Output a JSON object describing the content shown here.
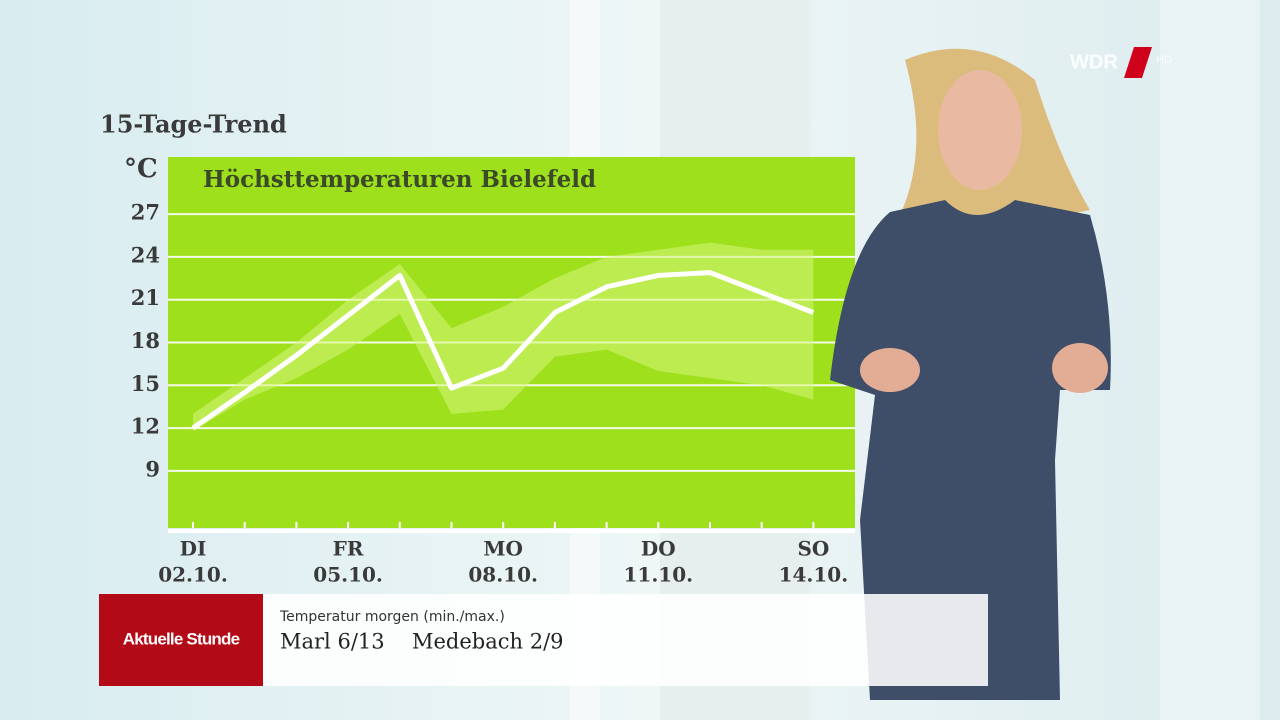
{
  "header": {
    "title": "15-Tage-Trend"
  },
  "logo": {
    "text": "WDR",
    "suffix": "HD"
  },
  "chart_data": {
    "type": "line",
    "title": "Höchsttemperaturen Bielefeld",
    "y_label": "°C",
    "weekdays": [
      "DI",
      null,
      null,
      "FR",
      null,
      null,
      "MO",
      null,
      null,
      "DO",
      null,
      null,
      "SO"
    ],
    "categories": [
      "02.10.",
      null,
      null,
      "05.10.",
      null,
      null,
      "08.10.",
      null,
      null,
      "11.10.",
      null,
      null,
      "14.10."
    ],
    "series": [
      {
        "color": "#ffffff",
        "values": [
          12.0,
          14.5,
          17.1,
          19.9,
          22.7,
          14.8,
          16.2,
          20.1,
          21.9,
          22.7,
          22.9,
          21.5,
          20.1
        ]
      }
    ],
    "band": {
      "color": "#d4f57a",
      "upper": [
        13.0,
        15.5,
        18.0,
        21.0,
        23.5,
        19.0,
        20.5,
        22.5,
        24.0,
        24.5,
        25.0,
        24.5,
        24.5
      ],
      "lower": [
        11.8,
        14.0,
        15.5,
        17.5,
        20.0,
        13.0,
        13.3,
        17.0,
        17.5,
        16.0,
        15.5,
        15.0,
        14.0
      ]
    },
    "ylim": [
      5,
      31
    ],
    "yticks": [
      9,
      12,
      15,
      18,
      21,
      24,
      27
    ],
    "grid": true,
    "background": "#9fe01c"
  },
  "lower_third": {
    "brand": "Aktuelle Stunde",
    "heading": "Temperatur morgen (min./max.)",
    "items": [
      "Marl 6/13",
      "Medebach 2/9"
    ]
  }
}
